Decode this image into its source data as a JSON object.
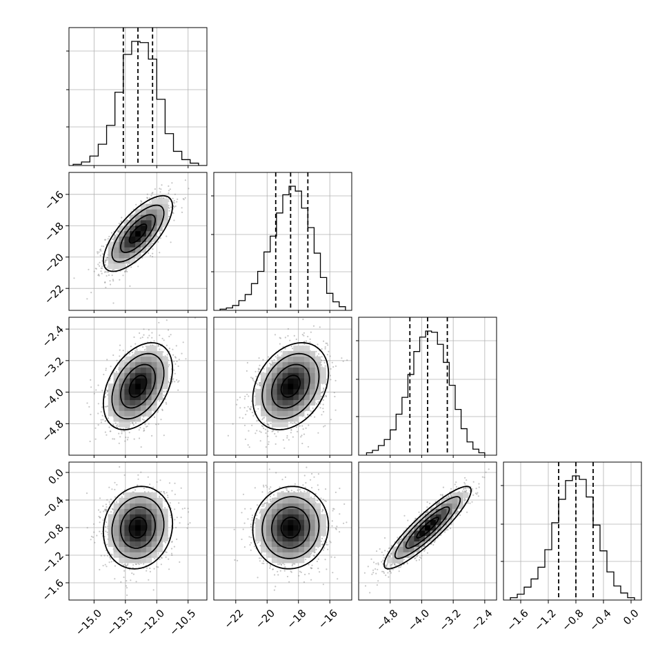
{
  "chart_data": {
    "type": "corner",
    "title": "",
    "parameters": [
      {
        "range": [
          -16.2,
          -9.6
        ],
        "ticks": [
          "−15.0",
          "−13.5",
          "−12.0",
          "−10.5"
        ],
        "tick_values": [
          -15.0,
          -13.5,
          -12.0,
          -10.5
        ],
        "quantiles": [
          -13.6,
          -12.9,
          -12.2
        ],
        "hist_bins": [
          -16.0,
          -15.6,
          -15.2,
          -14.8,
          -14.4,
          -14.0,
          -13.6,
          -13.2,
          -12.8,
          -12.4,
          -12.0,
          -11.6,
          -11.2,
          -10.8,
          -10.4,
          -10.0
        ],
        "hist_counts": [
          1,
          3,
          8,
          18,
          34,
          62,
          94,
          105,
          104,
          90,
          56,
          27,
          12,
          5,
          2,
          0
        ]
      },
      {
        "range": [
          -23.4,
          -14.6
        ],
        "ticks": [
          "−22",
          "−20",
          "−18",
          "−16"
        ],
        "tick_values": [
          -22,
          -20,
          -18,
          -16
        ],
        "quantiles": [
          -19.45,
          -18.5,
          -17.4
        ],
        "hist_bins": [
          -23.0,
          -22.6,
          -22.2,
          -21.8,
          -21.4,
          -21.0,
          -20.6,
          -20.2,
          -19.8,
          -19.4,
          -19.0,
          -18.6,
          -18.2,
          -17.8,
          -17.4,
          -17.0,
          -16.6,
          -16.2,
          -15.8,
          -15.4
        ],
        "hist_counts": [
          1,
          2,
          4,
          8,
          13,
          22,
          32,
          48,
          61,
          80,
          95,
          102,
          98,
          84,
          68,
          47,
          27,
          14,
          7,
          3
        ]
      },
      {
        "range": [
          -5.6,
          -2.1
        ],
        "ticks": [
          "−4.8",
          "−4.0",
          "−3.2",
          "−2.4"
        ],
        "tick_values": [
          -4.8,
          -4.0,
          -3.2,
          -2.4
        ],
        "quantiles": [
          -4.3,
          -3.85,
          -3.35
        ],
        "hist_bins": [
          -5.4,
          -5.25,
          -5.1,
          -4.95,
          -4.8,
          -4.65,
          -4.5,
          -4.35,
          -4.2,
          -4.05,
          -3.9,
          -3.75,
          -3.6,
          -3.45,
          -3.3,
          -3.15,
          -3.0,
          -2.85,
          -2.7,
          -2.55
        ],
        "hist_counts": [
          2,
          4,
          8,
          13,
          21,
          34,
          48,
          67,
          86,
          98,
          103,
          102,
          92,
          77,
          58,
          38,
          22,
          11,
          5,
          2
        ]
      },
      {
        "range": [
          -1.85,
          0.15
        ],
        "ticks": [
          "−1.6",
          "−1.2",
          "−0.8",
          "−0.4",
          "0.0"
        ],
        "tick_values": [
          -1.6,
          -1.2,
          -0.8,
          -0.4,
          0.0
        ],
        "quantiles": [
          -1.05,
          -0.8,
          -0.55
        ],
        "hist_bins": [
          -1.75,
          -1.65,
          -1.55,
          -1.45,
          -1.35,
          -1.25,
          -1.15,
          -1.05,
          -0.95,
          -0.85,
          -0.75,
          -0.65,
          -0.55,
          -0.45,
          -0.35,
          -0.25,
          -0.15,
          -0.05
        ],
        "hist_counts": [
          2,
          5,
          11,
          18,
          28,
          43,
          66,
          86,
          102,
          106,
          103,
          88,
          64,
          42,
          24,
          12,
          6,
          2
        ]
      }
    ],
    "pairs": [
      {
        "row": 1,
        "col": 0,
        "x_center": -12.9,
        "y_center": -18.5,
        "x_sd": 0.72,
        "y_sd": 1.05,
        "corr": 0.72
      },
      {
        "row": 2,
        "col": 0,
        "x_center": -12.9,
        "y_center": -3.85,
        "x_sd": 0.72,
        "y_sd": 0.48,
        "corr": 0.4
      },
      {
        "row": 2,
        "col": 1,
        "x_center": -18.5,
        "y_center": -3.85,
        "x_sd": 1.05,
        "y_sd": 0.48,
        "corr": 0.3
      },
      {
        "row": 3,
        "col": 0,
        "x_center": -12.9,
        "y_center": -0.8,
        "x_sd": 0.72,
        "y_sd": 0.26,
        "corr": 0.1
      },
      {
        "row": 3,
        "col": 1,
        "x_center": -18.5,
        "y_center": -0.8,
        "x_sd": 1.05,
        "y_sd": 0.26,
        "corr": 0.05
      },
      {
        "row": 3,
        "col": 2,
        "x_center": -3.85,
        "y_center": -0.8,
        "x_sd": 0.48,
        "y_sd": 0.26,
        "corr": 0.9
      }
    ],
    "contour_levels_sigma": [
      0.5,
      1.0,
      1.5,
      2.0
    ],
    "grid": true,
    "colors": {
      "contour": "#000000",
      "scatter": "#808080",
      "quantile_line": "#000000",
      "grid": "#b0b0b0"
    }
  }
}
